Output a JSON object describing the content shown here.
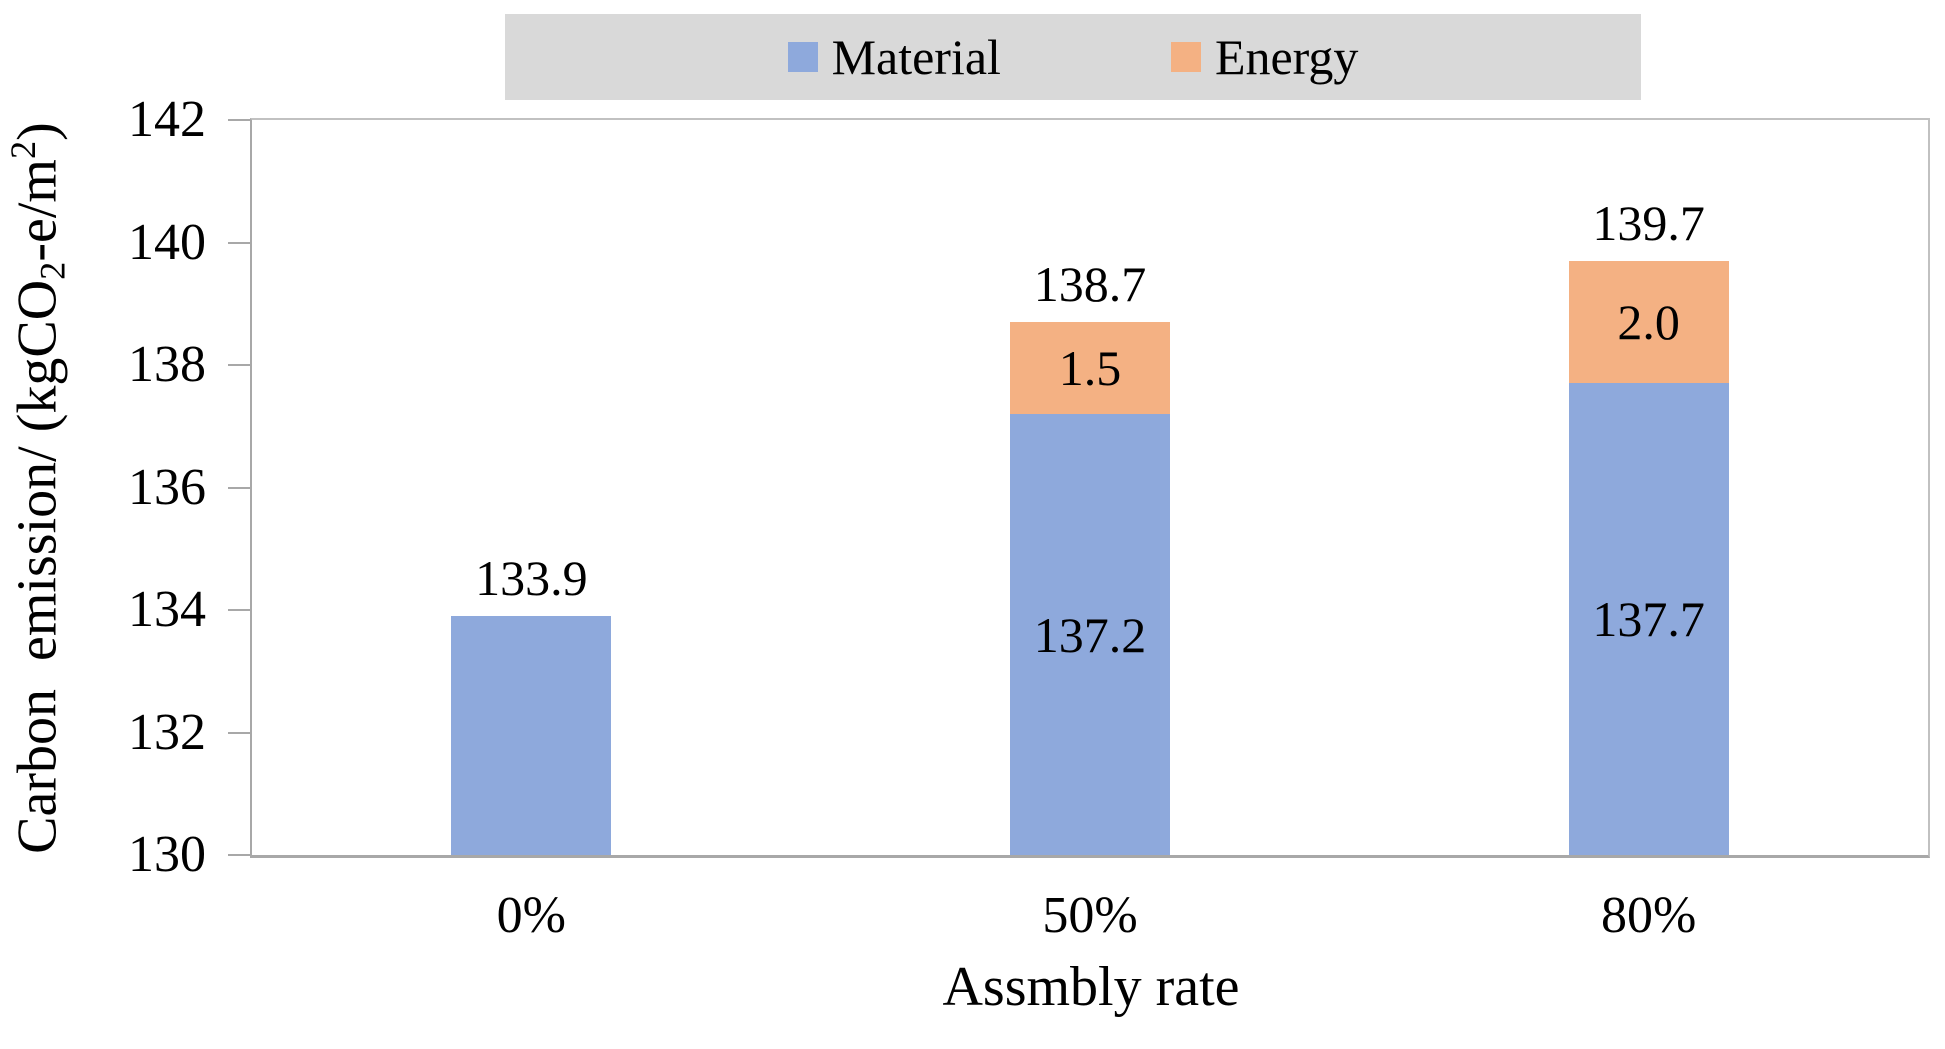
{
  "chart_data": {
    "type": "bar",
    "stacked": true,
    "title": "",
    "xlabel": "Assmbly rate",
    "ylabel": "Carbon emission/ (kgCO2-e/m2)",
    "ylabel_parts": [
      {
        "text": "Carbon  emission/ (kgCO"
      },
      {
        "text": "2",
        "style": "sub"
      },
      {
        "text": "-e/m"
      },
      {
        "text": "2",
        "style": "sup"
      },
      {
        "text": ")"
      }
    ],
    "categories": [
      "0%",
      "50%",
      "80%"
    ],
    "series": [
      {
        "name": "Material",
        "color": "#8EA9DC",
        "values": [
          133.9,
          137.2,
          137.7
        ]
      },
      {
        "name": "Energy",
        "color": "#F4B183",
        "values": [
          0,
          1.5,
          2.0
        ]
      }
    ],
    "totals": [
      133.9,
      138.7,
      139.7
    ],
    "bar_labels": {
      "total": [
        "133.9",
        "138.7",
        "139.7"
      ],
      "material_inside": [
        "",
        "137.2",
        "137.7"
      ],
      "energy_inside": [
        "",
        "1.5",
        "2.0"
      ]
    },
    "ylim": [
      130,
      142
    ],
    "ytick_step": 2,
    "yticks": [
      "130",
      "132",
      "134",
      "136",
      "138",
      "140",
      "142"
    ],
    "grid": false,
    "legend_position": "top",
    "legend_bg": "#D9D9D9",
    "axis_color": "#A8A8A8",
    "border_color": "#C1C1C1",
    "text_color": "#000000"
  }
}
